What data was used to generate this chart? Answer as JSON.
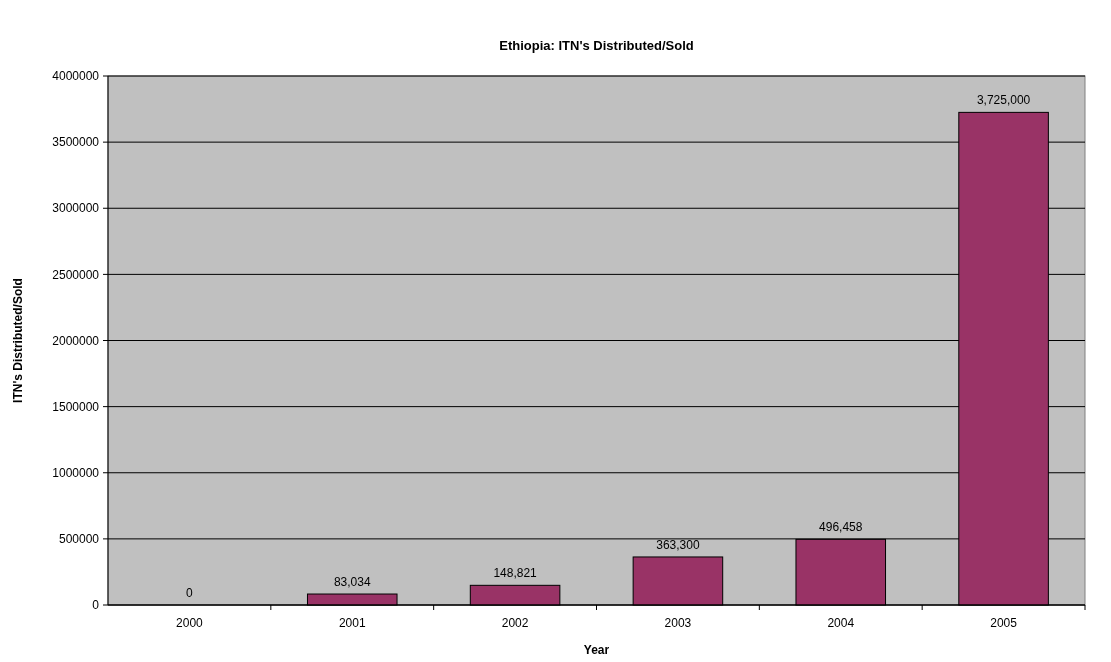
{
  "chart_data": {
    "type": "bar",
    "title": "Ethiopia: ITN's Distributed/Sold",
    "xlabel": "Year",
    "ylabel": "ITN's Distributed/Sold",
    "categories": [
      "2000",
      "2001",
      "2002",
      "2003",
      "2004",
      "2005"
    ],
    "values": [
      0,
      83034,
      148821,
      363300,
      496458,
      3725000
    ],
    "value_labels": [
      "0",
      "83,034",
      "148,821",
      "363,300",
      "496,458",
      "3,725,000"
    ],
    "color": "#993366",
    "ylim": [
      0,
      4000000
    ],
    "yticks": [
      0,
      500000,
      1000000,
      1500000,
      2000000,
      2500000,
      3000000,
      3500000,
      4000000
    ],
    "grid": "y"
  }
}
